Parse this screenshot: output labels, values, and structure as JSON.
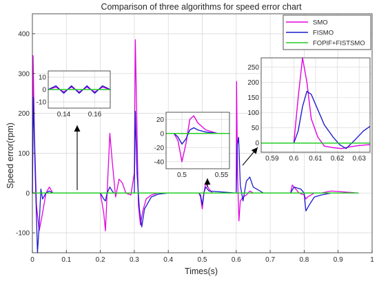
{
  "chart_data": {
    "type": "line",
    "title": "Comparison of three algorithms for speed error chart",
    "xlabel": "Times(s)",
    "ylabel": "Speed error(rpm)",
    "xlim": [
      0,
      1
    ],
    "ylim": [
      -150,
      450
    ],
    "xticks": [
      "0",
      "0.1",
      "0.2",
      "0.3",
      "0.4",
      "0.5",
      "0.6",
      "0.7",
      "0.8",
      "0.9",
      "1"
    ],
    "yticks": [
      "-100",
      "0",
      "100",
      "200",
      "300",
      "400"
    ],
    "grid": true,
    "legend_position": "top-right",
    "colors": {
      "SMO": "#e000e0",
      "FISMO": "#1a1acc",
      "FOPIF+FISTSMO": "#22cc22"
    },
    "series": [
      {
        "name": "SMO",
        "x": [
          0,
          0.002,
          0.006,
          0.012,
          0.02,
          0.03,
          0.04,
          0.05,
          0.06,
          0.09,
          0.2,
          0.21,
          0.215,
          0.22,
          0.228,
          0.235,
          0.245,
          0.255,
          0.265,
          0.275,
          0.29,
          0.3,
          0.303,
          0.307,
          0.312,
          0.318,
          0.325,
          0.335,
          0.35,
          0.37,
          0.4,
          0.49,
          0.495,
          0.5,
          0.505,
          0.51,
          0.52,
          0.53,
          0.6,
          0.601,
          0.604,
          0.608,
          0.612,
          0.62,
          0.63,
          0.64,
          0.65,
          0.68,
          0.76,
          0.765,
          0.775,
          0.785,
          0.8,
          0.805,
          0.81,
          0.82,
          0.83,
          0.85,
          0.88,
          0.96
        ],
        "y": [
          0,
          345,
          150,
          -30,
          -95,
          -50,
          0,
          15,
          0,
          0,
          0,
          -50,
          -95,
          0,
          150,
          80,
          -10,
          35,
          25,
          0,
          -5,
          50,
          385,
          200,
          -30,
          -80,
          -45,
          -15,
          -5,
          0,
          0,
          0,
          -10,
          -40,
          0,
          25,
          10,
          0,
          0,
          280,
          40,
          -70,
          -20,
          -10,
          -5,
          5,
          0,
          0,
          0,
          20,
          10,
          0,
          -5,
          -15,
          -10,
          -5,
          0,
          0,
          5,
          0
        ]
      },
      {
        "name": "FISMO",
        "x": [
          0,
          0.003,
          0.008,
          0.015,
          0.02,
          0.025,
          0.03,
          0.04,
          0.05,
          0.06,
          0.09,
          0.2,
          0.21,
          0.215,
          0.22,
          0.228,
          0.235,
          0.24,
          0.26,
          0.3,
          0.303,
          0.308,
          0.315,
          0.322,
          0.33,
          0.35,
          0.37,
          0.4,
          0.49,
          0.495,
          0.5,
          0.505,
          0.51,
          0.52,
          0.6,
          0.603,
          0.607,
          0.612,
          0.62,
          0.63,
          0.64,
          0.65,
          0.68,
          0.76,
          0.77,
          0.79,
          0.8,
          0.805,
          0.815,
          0.83,
          0.85,
          0.88,
          0.96
        ],
        "y": [
          0,
          240,
          60,
          -150,
          -80,
          10,
          -15,
          0,
          5,
          0,
          0,
          0,
          -15,
          -20,
          0,
          15,
          5,
          0,
          0,
          0,
          205,
          50,
          -40,
          -85,
          -40,
          -10,
          -3,
          0,
          0,
          -5,
          -30,
          0,
          15,
          5,
          0,
          120,
          140,
          20,
          -20,
          30,
          40,
          15,
          0,
          0,
          15,
          10,
          0,
          -45,
          -30,
          -10,
          -5,
          0,
          0
        ]
      },
      {
        "name": "FOPIF+FISTSMO",
        "x": [
          0,
          0.96
        ],
        "y": [
          0,
          0
        ]
      }
    ],
    "insets": [
      {
        "xlim": [
          0.13,
          0.17
        ],
        "ylim": [
          -15,
          15
        ],
        "xticks": [
          "0.14",
          "0.16"
        ],
        "yticks": [
          "-10",
          "0",
          "10"
        ],
        "series": [
          {
            "name": "SMO",
            "x": [
              0.13,
              0.135,
              0.14,
              0.145,
              0.15,
              0.155,
              0.16,
              0.165,
              0.17
            ],
            "y": [
              0,
              2,
              -2,
              2,
              -2,
              2,
              -2,
              2,
              0
            ]
          },
          {
            "name": "FISMO",
            "x": [
              0.13,
              0.135,
              0.14,
              0.145,
              0.15,
              0.155,
              0.16,
              0.165,
              0.17
            ],
            "y": [
              0,
              3,
              -3,
              3,
              -3,
              3,
              -3,
              3,
              0
            ]
          },
          {
            "name": "FOPIF+FISTSMO",
            "x": [
              0.13,
              0.17
            ],
            "y": [
              0,
              0
            ]
          }
        ]
      },
      {
        "xlim": [
          0.48,
          0.56
        ],
        "ylim": [
          -50,
          30
        ],
        "xticks": [
          "0.5",
          "0.55"
        ],
        "yticks": [
          "-40",
          "-20",
          "0",
          "20"
        ],
        "series": [
          {
            "name": "SMO",
            "x": [
              0.48,
              0.49,
              0.495,
              0.5,
              0.505,
              0.51,
              0.515,
              0.52,
              0.53,
              0.545,
              0.56
            ],
            "y": [
              0,
              0,
              -10,
              -40,
              -15,
              20,
              25,
              15,
              5,
              0,
              0
            ]
          },
          {
            "name": "FISMO",
            "x": [
              0.48,
              0.49,
              0.495,
              0.5,
              0.505,
              0.51,
              0.515,
              0.52,
              0.53,
              0.545,
              0.56
            ],
            "y": [
              0,
              0,
              -5,
              -15,
              -8,
              5,
              8,
              5,
              2,
              0,
              0
            ]
          },
          {
            "name": "FOPIF+FISTSMO",
            "x": [
              0.48,
              0.56
            ],
            "y": [
              0,
              0
            ]
          }
        ]
      },
      {
        "xlim": [
          0.585,
          0.635
        ],
        "ylim": [
          -30,
          280
        ],
        "xticks": [
          "0.59",
          "0.6",
          "0.61",
          "0.62",
          "0.63"
        ],
        "yticks": [
          "0",
          "50",
          "100",
          "150",
          "200",
          "250"
        ],
        "series": [
          {
            "name": "SMO",
            "x": [
              0.585,
              0.6,
              0.602,
              0.604,
              0.606,
              0.608,
              0.611,
              0.614,
              0.618,
              0.622,
              0.626,
              0.63,
              0.635
            ],
            "y": [
              0,
              0,
              150,
              280,
              200,
              80,
              20,
              -10,
              -15,
              -18,
              -12,
              -8,
              -5
            ]
          },
          {
            "name": "FISMO",
            "x": [
              0.585,
              0.6,
              0.602,
              0.604,
              0.606,
              0.608,
              0.611,
              0.614,
              0.618,
              0.621,
              0.624,
              0.628,
              0.632,
              0.635
            ],
            "y": [
              0,
              0,
              40,
              120,
              170,
              160,
              110,
              60,
              20,
              -5,
              -18,
              10,
              40,
              55
            ]
          },
          {
            "name": "FOPIF+FISTSMO",
            "x": [
              0.585,
              0.635
            ],
            "y": [
              0,
              0
            ]
          }
        ]
      }
    ]
  }
}
